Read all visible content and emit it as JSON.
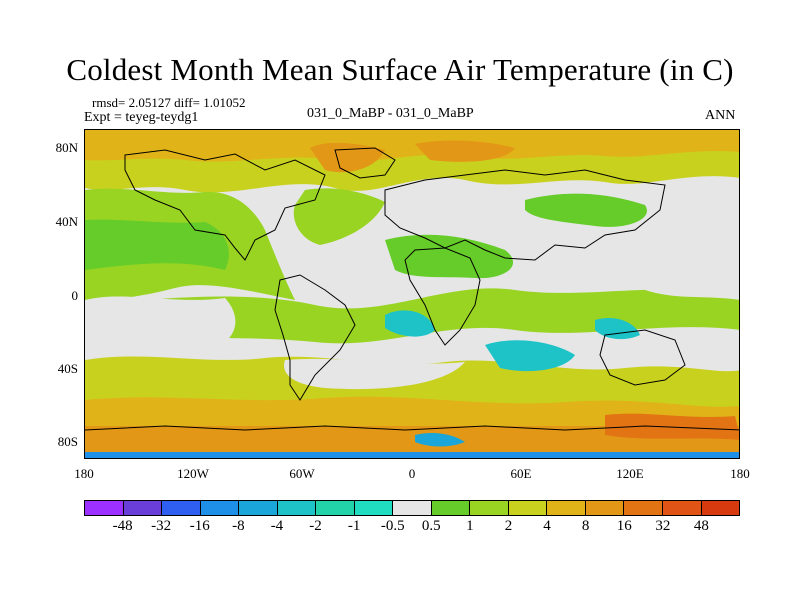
{
  "title": "Coldest Month Mean Surface Air Temperature (in C)",
  "stats": {
    "rmsd_line": "rmsd= 2.05127  diff= 1.01052",
    "expt_line": "Expt = teyeg-teydg1"
  },
  "subtitle": "031_0_MaBP - 031_0_MaBP",
  "season": "ANN",
  "axes": {
    "lat_ticks": [
      "80N",
      "40N",
      "0",
      "40S",
      "80S"
    ],
    "lon_ticks": [
      "180",
      "120W",
      "60W",
      "0",
      "60E",
      "120E",
      "180"
    ]
  },
  "colorbar": {
    "labels": [
      "-48",
      "-32",
      "-16",
      "-8",
      "-4",
      "-2",
      "-1",
      "-0.5",
      "0.5",
      "1",
      "2",
      "4",
      "8",
      "16",
      "32",
      "48"
    ],
    "colors": [
      "#9b30ff",
      "#6a3fd9",
      "#2f5ff0",
      "#1e90e8",
      "#1aa6d8",
      "#1ec3c8",
      "#22d2a8",
      "#20dcc0",
      "#e6e6e6",
      "#66cc2a",
      "#99d423",
      "#c8d21e",
      "#e0b418",
      "#e39716",
      "#e37414",
      "#e05516",
      "#d83a10"
    ]
  },
  "palette": {
    "no_change": "#e6e6e6",
    "light_warm": "#66cc2a",
    "warm": "#99d423",
    "warmer": "#c8d21e",
    "hot": "#e0b418",
    "hotter": "#e39716",
    "cool": "#20dcc0",
    "cold": "#1ec3c8",
    "colder": "#1aa6d8",
    "coldest": "#1e90e8"
  }
}
